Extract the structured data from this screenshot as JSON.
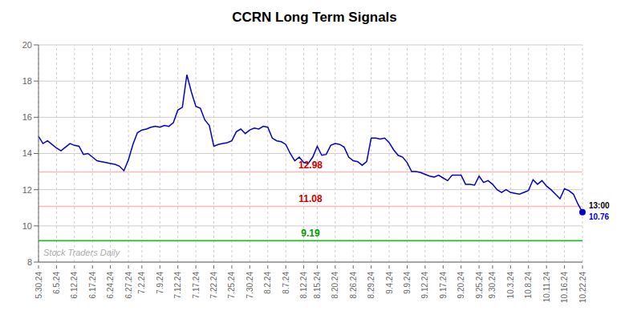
{
  "chart_data": {
    "type": "line",
    "title": "CCRN Long Term Signals",
    "categories": [
      "5.30.24",
      null,
      null,
      null,
      "6.5.24",
      null,
      null,
      null,
      "6.12.24",
      null,
      null,
      null,
      "6.17.24",
      null,
      null,
      null,
      "6.24.24",
      null,
      null,
      null,
      "6.27.24",
      null,
      null,
      "7.2.24",
      null,
      null,
      null,
      "7.9.24",
      null,
      null,
      null,
      "7.12.24",
      null,
      null,
      null,
      "7.17.24",
      null,
      null,
      null,
      "7.22.24",
      null,
      null,
      null,
      "7.25.24",
      null,
      null,
      null,
      "7.30.24",
      null,
      null,
      null,
      "8.2.24",
      null,
      null,
      null,
      "8.7.24",
      null,
      null,
      null,
      "8.12.24",
      null,
      null,
      "8.15.24",
      null,
      null,
      null,
      "8.20.24",
      null,
      null,
      null,
      "8.26.24",
      null,
      null,
      null,
      "8.29.24",
      null,
      null,
      null,
      "9.4.24",
      null,
      null,
      null,
      "9.9.24",
      null,
      null,
      null,
      "9.12.24",
      null,
      null,
      null,
      "9.17.24",
      null,
      null,
      null,
      "9.20.24",
      null,
      null,
      null,
      "9.25.24",
      null,
      null,
      "9.30.24",
      null,
      null,
      null,
      "10.3.24",
      null,
      null,
      null,
      "10.8.24",
      null,
      null,
      null,
      "10.11.24",
      null,
      null,
      null,
      "10.16.24",
      null,
      null,
      null,
      "10.22.24"
    ],
    "values": [
      14.95,
      14.55,
      14.7,
      14.5,
      14.3,
      14.15,
      14.35,
      14.55,
      14.45,
      14.4,
      13.95,
      14.0,
      13.8,
      13.6,
      13.55,
      13.5,
      13.45,
      13.4,
      13.3,
      13.05,
      13.65,
      14.5,
      15.15,
      15.3,
      15.35,
      15.45,
      15.5,
      15.45,
      15.55,
      15.5,
      15.7,
      16.4,
      16.55,
      18.35,
      17.4,
      16.6,
      16.5,
      15.85,
      15.55,
      14.4,
      14.5,
      14.55,
      14.6,
      14.7,
      15.2,
      15.35,
      15.1,
      15.3,
      15.4,
      15.35,
      15.5,
      15.45,
      14.85,
      14.7,
      14.65,
      14.5,
      14.0,
      13.6,
      13.8,
      13.5,
      13.45,
      13.8,
      14.4,
      13.9,
      13.95,
      14.45,
      14.55,
      14.5,
      14.35,
      13.8,
      13.6,
      13.55,
      13.35,
      13.55,
      14.85,
      14.85,
      14.8,
      14.85,
      14.6,
      14.2,
      13.9,
      13.8,
      13.5,
      13.0,
      13.0,
      12.95,
      12.85,
      12.75,
      12.7,
      12.8,
      12.65,
      12.5,
      12.8,
      12.8,
      12.8,
      12.3,
      12.3,
      12.25,
      12.75,
      12.4,
      12.5,
      12.3,
      12.0,
      11.85,
      12.0,
      11.85,
      11.8,
      11.75,
      11.85,
      11.95,
      12.55,
      12.3,
      12.5,
      12.2,
      12.0,
      11.75,
      11.5,
      12.05,
      11.95,
      11.75,
      11.2,
      10.76
    ],
    "color": "#0000cc",
    "ylim": [
      8,
      20
    ],
    "yticks": [
      8,
      10,
      12,
      14,
      16,
      18,
      20
    ],
    "grid": true,
    "reference_lines": [
      {
        "value": 12.98,
        "label": "12.98",
        "color": "#ffb6b6",
        "label_color": "#cc0000"
      },
      {
        "value": 11.08,
        "label": "11.08",
        "color": "#ffb6b6",
        "label_color": "#cc0000"
      },
      {
        "value": 9.19,
        "label": "9.19",
        "color": "#00cc00",
        "label_color": "#009900"
      }
    ],
    "last_point": {
      "label": "13:00",
      "value": 10.76,
      "color": "#0000cc"
    },
    "watermark": {
      "text": "Stock Traders Daily",
      "color": "#aaaaaa"
    }
  }
}
